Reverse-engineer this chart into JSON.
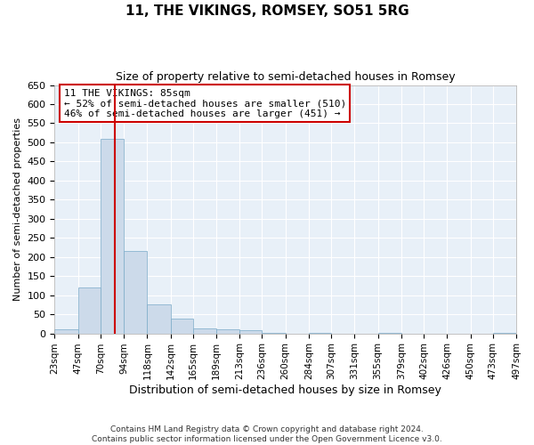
{
  "title": "11, THE VIKINGS, ROMSEY, SO51 5RG",
  "subtitle": "Size of property relative to semi-detached houses in Romsey",
  "xlabel": "Distribution of semi-detached houses by size in Romsey",
  "ylabel": "Number of semi-detached properties",
  "property_size": 85,
  "property_line_color": "#cc0000",
  "bar_color": "#ccdaea",
  "bar_edge_color": "#7aaac8",
  "background_color": "#e8f0f8",
  "annotation_line1": "11 THE VIKINGS: 85sqm",
  "annotation_line2": "← 52% of semi-detached houses are smaller (510)",
  "annotation_line3": "46% of semi-detached houses are larger (451) →",
  "annotation_box_color": "#ffffff",
  "annotation_box_edge": "#cc0000",
  "footer_line1": "Contains HM Land Registry data © Crown copyright and database right 2024.",
  "footer_line2": "Contains public sector information licensed under the Open Government Licence v3.0.",
  "bin_edges": [
    23,
    47,
    70,
    94,
    118,
    142,
    165,
    189,
    213,
    236,
    260,
    284,
    307,
    331,
    355,
    379,
    402,
    426,
    450,
    473,
    497
  ],
  "counts": [
    10,
    120,
    510,
    215,
    75,
    38,
    13,
    10,
    8,
    1,
    0,
    1,
    0,
    0,
    1,
    0,
    0,
    0,
    0,
    1
  ],
  "ylim": [
    0,
    650
  ],
  "yticks": [
    0,
    50,
    100,
    150,
    200,
    250,
    300,
    350,
    400,
    450,
    500,
    550,
    600,
    650
  ],
  "title_fontsize": 11,
  "subtitle_fontsize": 9,
  "ylabel_fontsize": 8,
  "xlabel_fontsize": 9,
  "tick_fontsize": 8,
  "xtick_fontsize": 7.5
}
